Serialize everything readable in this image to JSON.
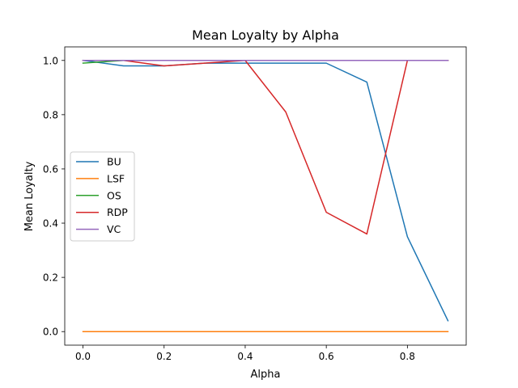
{
  "chart_data": {
    "type": "line",
    "title": "Mean Loyalty by Alpha",
    "xlabel": "Alpha",
    "ylabel": "Mean Loyalty",
    "x": [
      0.0,
      0.1,
      0.2,
      0.3,
      0.4,
      0.5,
      0.6,
      0.7,
      0.8,
      0.9
    ],
    "xlim": [
      -0.045,
      0.945
    ],
    "ylim": [
      -0.05,
      1.05
    ],
    "xticks": [
      0.0,
      0.2,
      0.4,
      0.6,
      0.8
    ],
    "xtick_labels": [
      "0.0",
      "0.2",
      "0.4",
      "0.6",
      "0.8"
    ],
    "yticks": [
      0.0,
      0.2,
      0.4,
      0.6,
      0.8,
      1.0
    ],
    "ytick_labels": [
      "0.0",
      "0.2",
      "0.4",
      "0.6",
      "0.8",
      "1.0"
    ],
    "grid": false,
    "legend_position": "center-left",
    "series": [
      {
        "name": "BU",
        "color": "#1f77b4",
        "values": [
          1.0,
          0.98,
          0.98,
          0.99,
          0.99,
          0.99,
          0.99,
          0.92,
          0.35,
          0.04
        ]
      },
      {
        "name": "LSF",
        "color": "#ff7f0e",
        "values": [
          0.0,
          0.0,
          0.0,
          0.0,
          0.0,
          0.0,
          0.0,
          0.0,
          0.0,
          0.0
        ]
      },
      {
        "name": "OS",
        "color": "#2ca02c",
        "values": [
          0.99,
          1.0,
          1.0,
          1.0,
          1.0,
          1.0,
          1.0,
          1.0,
          1.0,
          1.0
        ]
      },
      {
        "name": "RDP",
        "color": "#d62728",
        "values": [
          1.0,
          1.0,
          0.98,
          0.99,
          1.0,
          0.81,
          0.44,
          0.36,
          1.0,
          1.0
        ]
      },
      {
        "name": "VC",
        "color": "#9467bd",
        "values": [
          1.0,
          1.0,
          1.0,
          1.0,
          1.0,
          1.0,
          1.0,
          1.0,
          1.0,
          1.0
        ]
      }
    ]
  }
}
